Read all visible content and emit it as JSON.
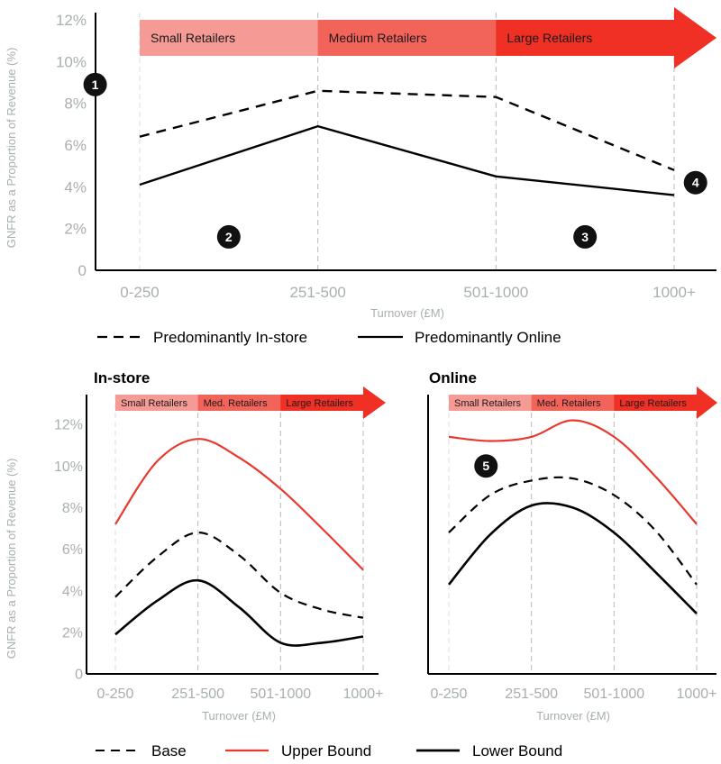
{
  "colors": {
    "axis": "#000000",
    "tick_text": "#a8b0ae",
    "grid": "#cccccc",
    "upper": "#e8392f",
    "band_small": "#f59a94",
    "band_medium": "#f2645a",
    "band_large": "#f02f25"
  },
  "top_legend": {
    "instore": "Predominantly In-store",
    "online": "Predominantly Online"
  },
  "bottom_legend": {
    "base": "Base",
    "upper": "Upper Bound",
    "lower": "Lower Bound"
  },
  "chart_data": [
    {
      "id": "main",
      "type": "line",
      "title": "",
      "xlabel": "Turnover (£M)",
      "ylabel": "GNFR as a Proportion of Revenue (%)",
      "categories": [
        "0-250",
        "251-500",
        "501-1000",
        "1000+"
      ],
      "yticks": [
        "0",
        "2%",
        "4%",
        "6%",
        "8%",
        "10%",
        "12%"
      ],
      "ylim": [
        0,
        12
      ],
      "bands": [
        "Small Retailers",
        "Medium Retailers",
        "Large Retailers"
      ],
      "markers": [
        {
          "label": "1",
          "x": -0.25,
          "y": 8.9
        },
        {
          "label": "2",
          "x": 0.5,
          "y": 1.6
        },
        {
          "label": "3",
          "x": 2.5,
          "y": 1.6
        },
        {
          "label": "4",
          "x": 3.12,
          "y": 4.2
        }
      ],
      "series": [
        {
          "name": "Predominantly In-store",
          "style": "dashed",
          "values": [
            6.4,
            8.6,
            8.3,
            4.8
          ]
        },
        {
          "name": "Predominantly Online",
          "style": "solid",
          "values": [
            4.1,
            6.9,
            4.5,
            3.6
          ]
        }
      ]
    },
    {
      "id": "instore",
      "type": "line",
      "title": "In-store",
      "xlabel": "Turnover (£M)",
      "ylabel": "GNFR as a Proportion of Revenue (%)",
      "categories": [
        "0-250",
        "251-500",
        "501-1000",
        "1000+"
      ],
      "yticks": [
        "0",
        "2%",
        "4%",
        "6%",
        "8%",
        "10%",
        "12%"
      ],
      "ylim": [
        0,
        13
      ],
      "bands": [
        "Small Retailers",
        "Med. Retailers",
        "Large Retailers"
      ],
      "markers": [],
      "series": [
        {
          "name": "Base",
          "style": "dashed",
          "x": [
            0,
            0.5,
            1,
            1.5,
            2,
            2.5,
            3
          ],
          "values": [
            3.7,
            5.6,
            6.8,
            5.7,
            3.9,
            3.1,
            2.7
          ]
        },
        {
          "name": "Upper Bound",
          "style": "upper",
          "x": [
            0,
            0.5,
            1,
            1.5,
            2,
            2.5,
            3
          ],
          "values": [
            7.2,
            10.2,
            11.3,
            10.4,
            8.9,
            7.0,
            5.0
          ]
        },
        {
          "name": "Lower Bound",
          "style": "solid",
          "x": [
            0,
            0.5,
            1,
            1.5,
            2,
            2.5,
            3
          ],
          "values": [
            1.9,
            3.5,
            4.5,
            3.2,
            1.5,
            1.5,
            1.8
          ]
        }
      ]
    },
    {
      "id": "online",
      "type": "line",
      "title": "Online",
      "xlabel": "Turnover (£M)",
      "ylabel": "",
      "categories": [
        "0-250",
        "251-500",
        "501-1000",
        "1000+"
      ],
      "yticks": [],
      "ylim": [
        0,
        13
      ],
      "bands": [
        "Small Retailers",
        "Med. Retailers",
        "Large Retailers"
      ],
      "markers": [
        {
          "label": "5",
          "x": 0.45,
          "y": 10.0
        }
      ],
      "series": [
        {
          "name": "Base",
          "style": "dashed",
          "x": [
            0,
            0.5,
            1,
            1.5,
            2,
            2.5,
            3
          ],
          "values": [
            6.8,
            8.6,
            9.3,
            9.4,
            8.6,
            6.9,
            4.3
          ]
        },
        {
          "name": "Upper Bound",
          "style": "upper",
          "x": [
            0,
            0.5,
            1,
            1.5,
            2,
            2.5,
            3
          ],
          "values": [
            11.4,
            11.2,
            11.4,
            12.2,
            11.4,
            9.5,
            7.2
          ]
        },
        {
          "name": "Lower Bound",
          "style": "solid",
          "x": [
            0,
            0.5,
            1,
            1.5,
            2,
            2.5,
            3
          ],
          "values": [
            4.3,
            6.7,
            8.1,
            8.0,
            6.8,
            4.9,
            2.9
          ]
        }
      ]
    }
  ]
}
